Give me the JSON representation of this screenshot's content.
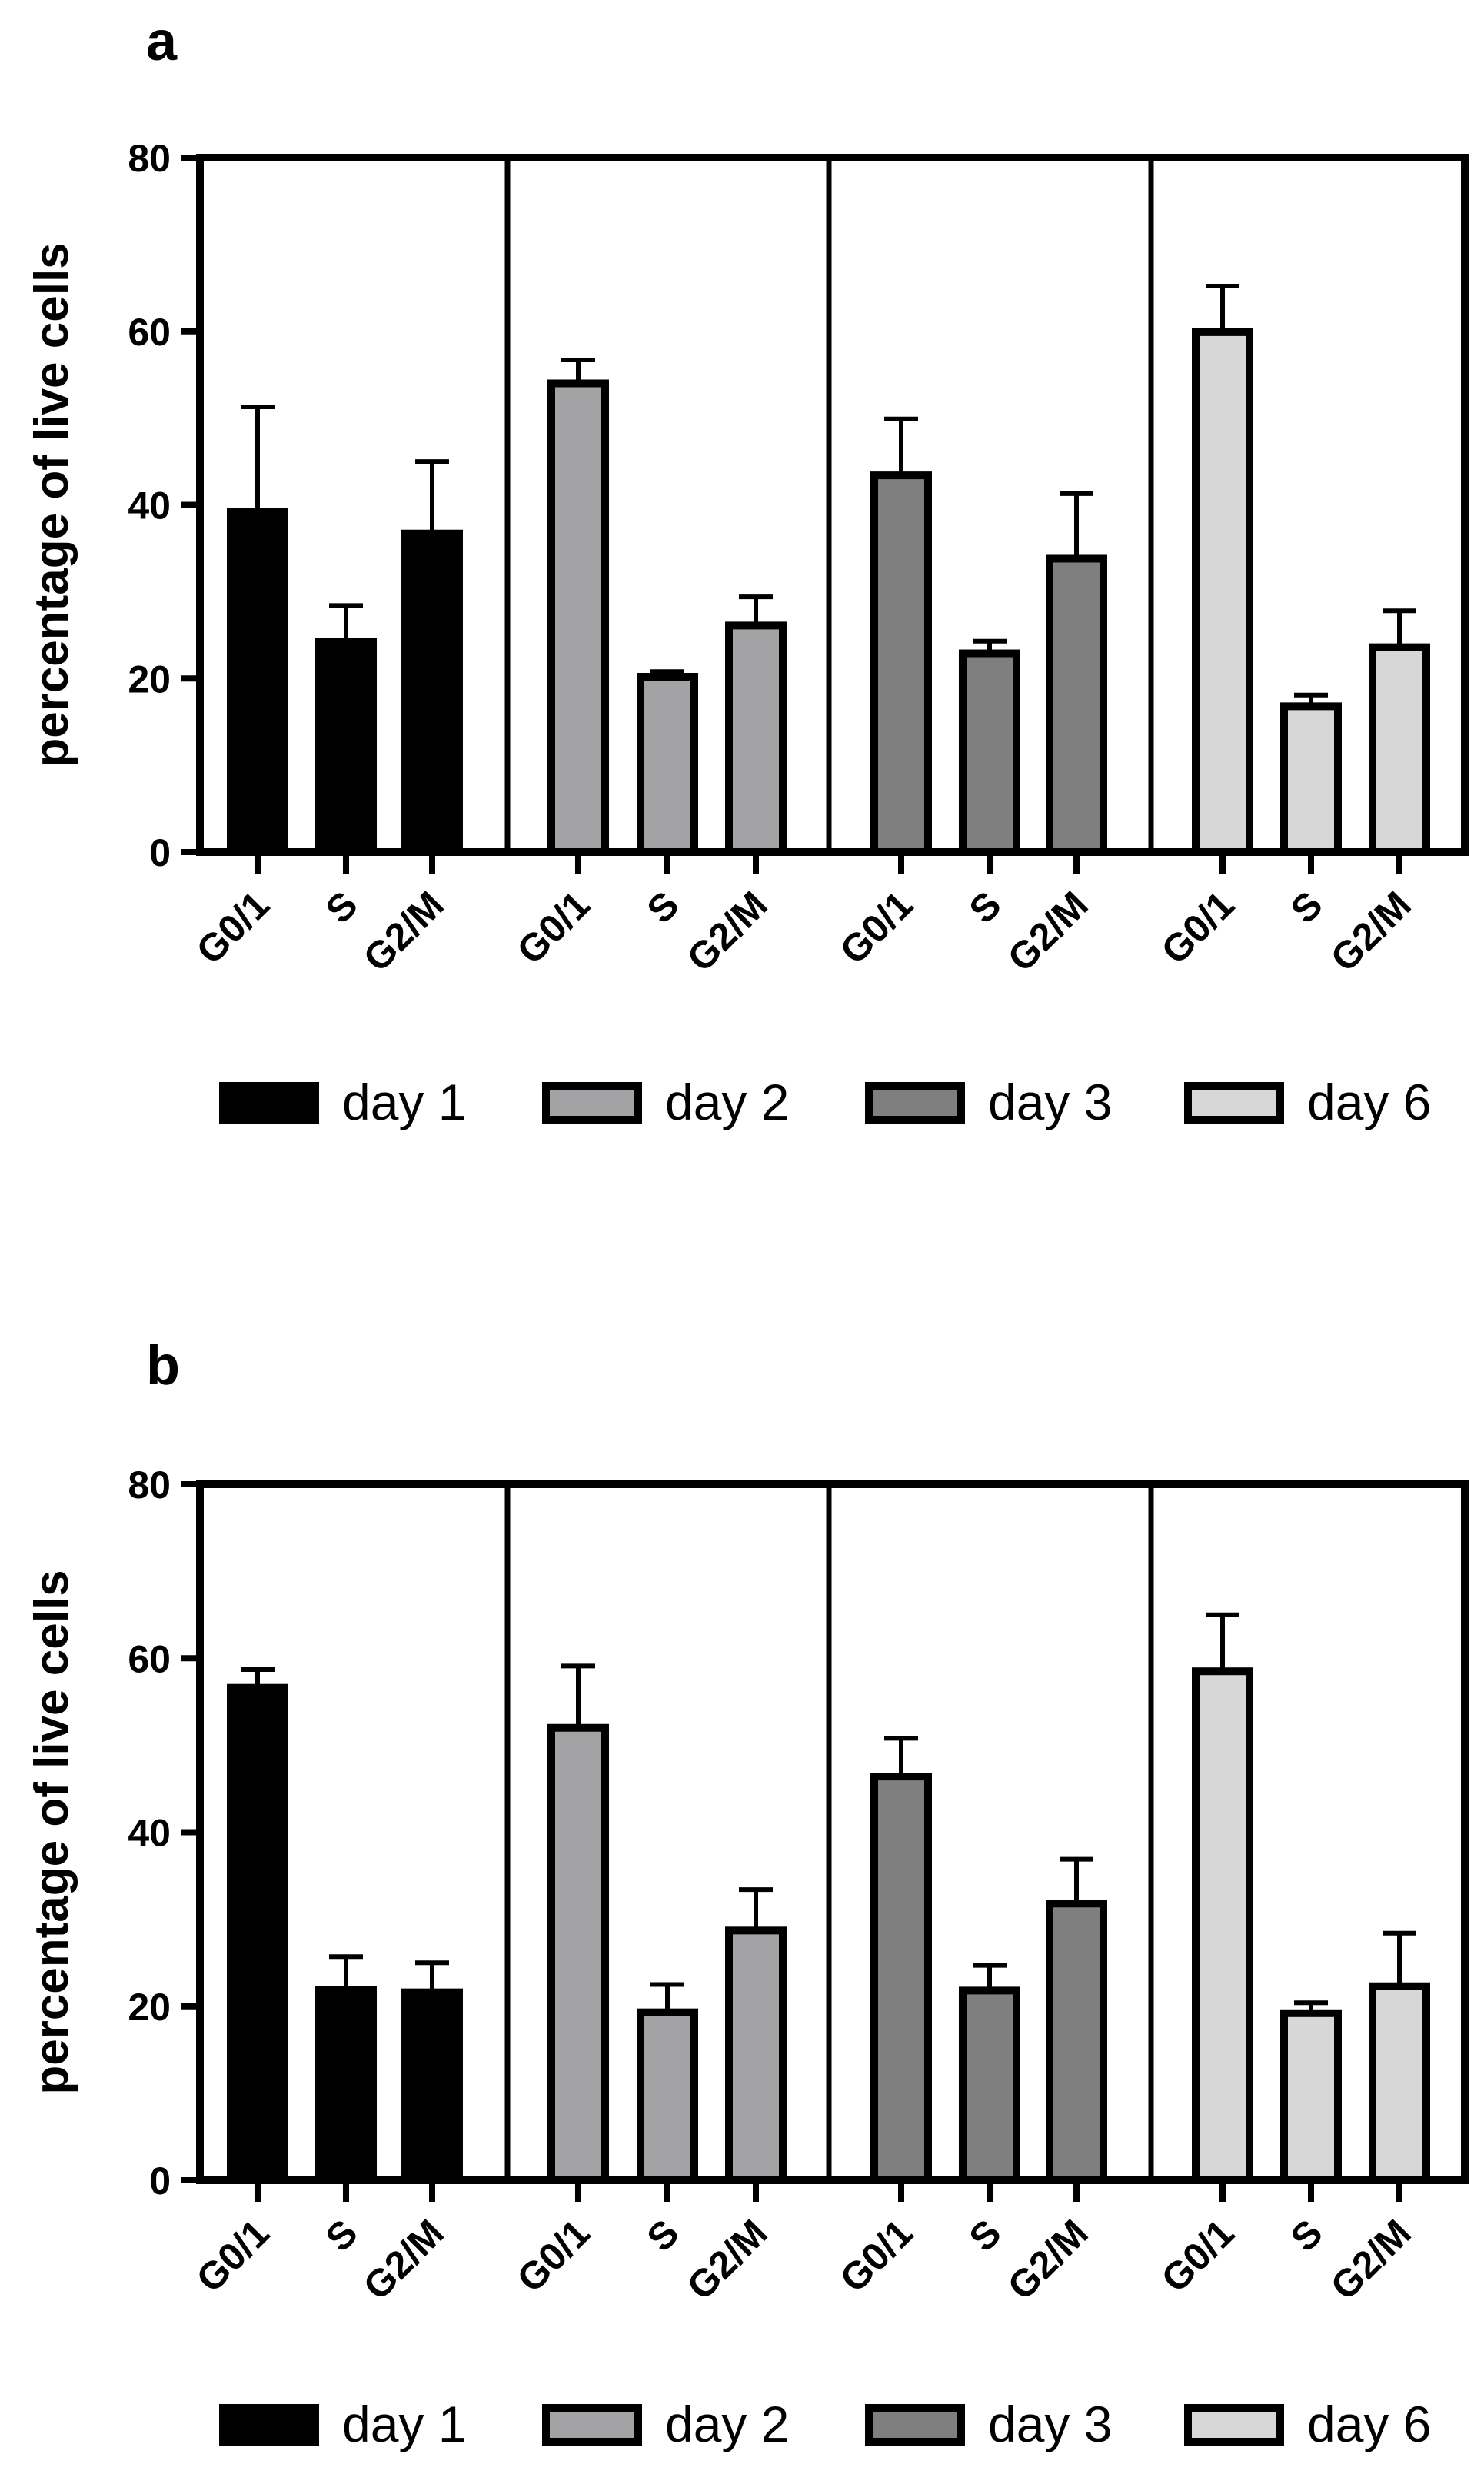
{
  "chart_data": [
    {
      "panel": "a",
      "type": "bar",
      "ylabel": "percentage of live cells",
      "xlabel": "",
      "ylim": [
        0,
        80
      ],
      "yticks": [
        0,
        20,
        40,
        60,
        80
      ],
      "categories": [
        "G0/1",
        "S",
        "G2/M"
      ],
      "series": [
        {
          "name": "day 1",
          "color": "#000000",
          "values": [
            39.2,
            24.2,
            36.7
          ],
          "errors": [
            12.1,
            4.2,
            8.3
          ]
        },
        {
          "name": "day 2",
          "color": "#a3a3a5",
          "values": [
            54.0,
            20.2,
            26.1
          ],
          "errors": [
            2.7,
            0.6,
            3.3
          ]
        },
        {
          "name": "day 3",
          "color": "#7f7f7f",
          "values": [
            43.4,
            22.9,
            33.8
          ],
          "errors": [
            6.5,
            1.4,
            7.5
          ]
        },
        {
          "name": "day 6",
          "color": "#d7d7d7",
          "values": [
            59.9,
            16.8,
            23.6
          ],
          "errors": [
            5.3,
            1.3,
            4.2
          ]
        }
      ]
    },
    {
      "panel": "b",
      "type": "bar",
      "ylabel": "percentage of live cells",
      "xlabel": "",
      "ylim": [
        0,
        80
      ],
      "yticks": [
        0,
        20,
        40,
        60,
        80
      ],
      "categories": [
        "G0/1",
        "S",
        "G2/M"
      ],
      "series": [
        {
          "name": "day 1",
          "color": "#000000",
          "values": [
            56.6,
            21.9,
            21.6
          ],
          "errors": [
            2.1,
            3.8,
            3.4
          ]
        },
        {
          "name": "day 2",
          "color": "#a3a3a5",
          "values": [
            52.0,
            19.3,
            28.7
          ],
          "errors": [
            7.1,
            3.2,
            4.7
          ]
        },
        {
          "name": "day 3",
          "color": "#7f7f7f",
          "values": [
            46.4,
            21.8,
            31.8
          ],
          "errors": [
            4.4,
            2.9,
            5.1
          ]
        },
        {
          "name": "day 6",
          "color": "#d7d7d7",
          "values": [
            58.5,
            19.2,
            22.3
          ],
          "errors": [
            6.5,
            1.2,
            6.1
          ]
        }
      ]
    }
  ]
}
